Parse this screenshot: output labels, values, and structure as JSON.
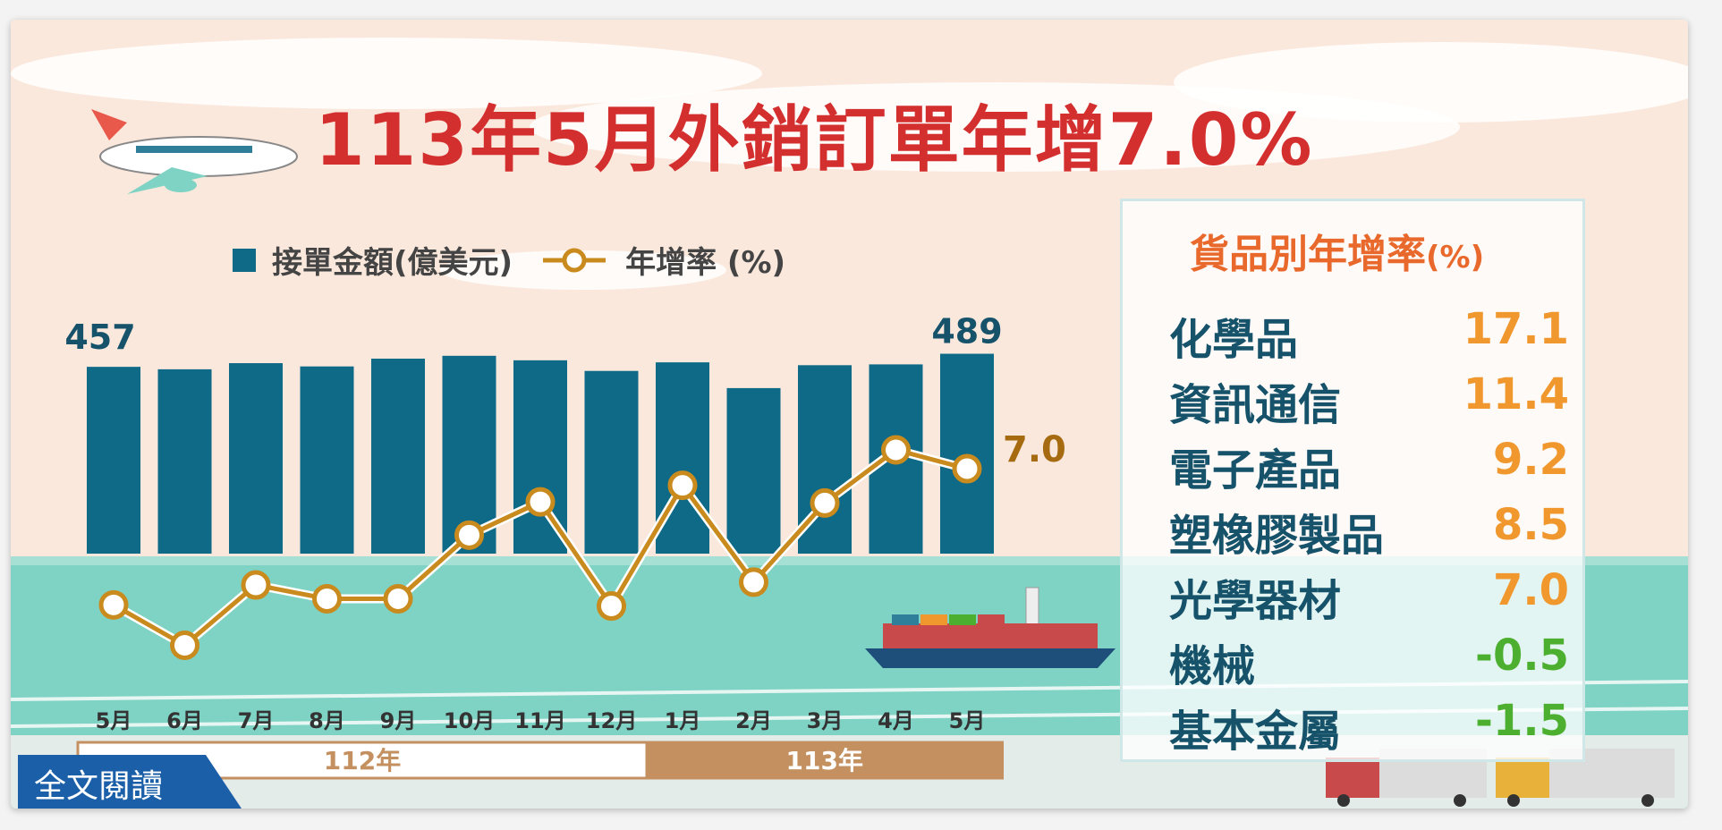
{
  "title": "113年5月外銷訂單年增7.0%",
  "legend": {
    "bars": "接單金額(億美元)",
    "line": "年增率 (%)"
  },
  "colors": {
    "bar": "#0e6a86",
    "line": "#c98a1e",
    "title": "#d42f2f",
    "positive": "#f0972e",
    "negative": "#4caf2f"
  },
  "chart_data": {
    "type": "bar+line",
    "categories": [
      "5月",
      "6月",
      "7月",
      "8月",
      "9月",
      "10月",
      "11月",
      "12月",
      "1月",
      "2月",
      "3月",
      "4月",
      "5月"
    ],
    "year_groups": [
      {
        "label": "112年",
        "count": 8
      },
      {
        "label": "113年",
        "count": 5
      }
    ],
    "series": [
      {
        "name": "接單金額(億美元)",
        "type": "bar",
        "values": [
          457,
          451,
          466,
          458,
          477,
          484,
          473,
          447,
          468,
          405,
          461,
          463,
          489
        ]
      },
      {
        "name": "年增率 (%)",
        "type": "line",
        "values": [
          -17.6,
          -24.9,
          -14.0,
          -16.5,
          -16.5,
          -5.0,
          1.0,
          -17.8,
          4.0,
          -13.5,
          0.8,
          10.4,
          7.0
        ]
      }
    ],
    "data_labels": {
      "first_bar": "457",
      "last_bar": "489",
      "last_line": "7.0"
    },
    "bar_ylim": [
      0,
      500
    ]
  },
  "panel": {
    "title": "貨品別年增率",
    "unit": "(%)",
    "rows": [
      {
        "name": "化學品",
        "value": "17.1",
        "sign": "pos"
      },
      {
        "name": "資訊通信",
        "value": "11.4",
        "sign": "pos"
      },
      {
        "name": "電子產品",
        "value": "9.2",
        "sign": "pos"
      },
      {
        "name": "塑橡膠製品",
        "value": "8.5",
        "sign": "pos"
      },
      {
        "name": "光學器材",
        "value": "7.0",
        "sign": "pos"
      },
      {
        "name": "機械",
        "value": "-0.5",
        "sign": "neg"
      },
      {
        "name": "基本金屬",
        "value": "-1.5",
        "sign": "neg"
      }
    ]
  },
  "read_button": "全文閱讀"
}
